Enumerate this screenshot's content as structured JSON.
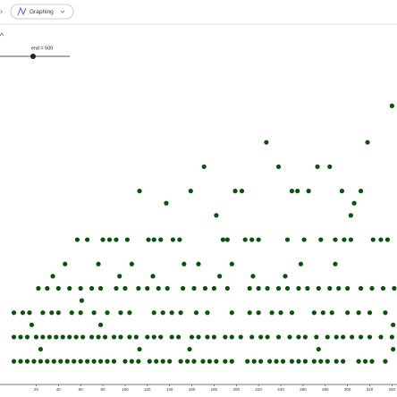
{
  "toolbar": {
    "app": "Graphing"
  },
  "slider": {
    "label": "end = 500"
  },
  "chart_data": {
    "type": "scatter",
    "color": "#0b520b",
    "xlim": [
      -12.5,
      344.5
    ],
    "ylim": [
      -0.9,
      30.7
    ],
    "xticks": [
      20,
      40,
      60,
      80,
      100,
      120,
      140,
      160,
      180,
      200,
      220,
      240,
      260,
      280,
      300,
      320,
      340
    ],
    "x": [
      0,
      6,
      12,
      18,
      24,
      30,
      36,
      42,
      48,
      54,
      60,
      66,
      72,
      78,
      84,
      90,
      100,
      106,
      112,
      122,
      128,
      134,
      140,
      150,
      156,
      162,
      170,
      176,
      182,
      190,
      196,
      210,
      216,
      222,
      230,
      236,
      242,
      250,
      256,
      262,
      270,
      276,
      282,
      290,
      296,
      310,
      316,
      322,
      334,
      24,
      113,
      158,
      274,
      341,
      0,
      6,
      12,
      20,
      26,
      32,
      38,
      44,
      50,
      56,
      62,
      70,
      76,
      82,
      90,
      96,
      104,
      110,
      120,
      126,
      132,
      142,
      148,
      160,
      166,
      174,
      180,
      190,
      196,
      204,
      214,
      222,
      228,
      238,
      248,
      256,
      262,
      272,
      282,
      290,
      296,
      304,
      312,
      320,
      330,
      340,
      16,
      78,
      341,
      0,
      8,
      14,
      26,
      34,
      40,
      52,
      60,
      72,
      84,
      96,
      104,
      126,
      134,
      142,
      150,
      164,
      174,
      196,
      212,
      220,
      232,
      240,
      250,
      270,
      278,
      286,
      300,
      310,
      320,
      334,
      61,
      22,
      30,
      40,
      50,
      60,
      70,
      78,
      92,
      100,
      112,
      120,
      130,
      138,
      152,
      162,
      172,
      180,
      192,
      212,
      220,
      228,
      238,
      246,
      256,
      264,
      274,
      284,
      292,
      300,
      312,
      322,
      332,
      342,
      35,
      95,
      125,
      185,
      215,
      244,
      46,
      76,
      106,
      153,
      166,
      196,
      258,
      289,
      57,
      66,
      80,
      86,
      92,
      102,
      121,
      126,
      132,
      143,
      149,
      188,
      192,
      208,
      214,
      220,
      246,
      261,
      276,
      289,
      297,
      303,
      323,
      330,
      336,
      182,
      303,
      137,
      306,
      113,
      159,
      199,
      205,
      250,
      255,
      265,
      295,
      312,
      171,
      238,
      273,
      284,
      227,
      318,
      340
    ],
    "values": [
      1,
      1,
      1,
      1,
      1,
      1,
      1,
      1,
      1,
      1,
      1,
      1,
      1,
      1,
      1,
      1,
      1,
      1,
      1,
      1,
      1,
      1,
      1,
      1,
      1,
      1,
      1,
      1,
      1,
      1,
      1,
      1,
      1,
      1,
      1,
      1,
      1,
      1,
      1,
      1,
      1,
      1,
      1,
      1,
      1,
      1,
      1,
      1,
      1,
      2,
      2,
      2,
      2,
      2,
      3,
      3,
      3,
      3,
      3,
      3,
      3,
      3,
      3,
      3,
      3,
      3,
      3,
      3,
      3,
      3,
      3,
      3,
      3,
      3,
      3,
      3,
      3,
      3,
      3,
      3,
      3,
      3,
      3,
      3,
      3,
      3,
      3,
      3,
      3,
      3,
      3,
      3,
      3,
      3,
      3,
      3,
      3,
      3,
      3,
      3,
      4,
      4,
      4,
      5,
      5,
      5,
      5,
      5,
      5,
      5,
      5,
      5,
      5,
      5,
      5,
      5,
      5,
      5,
      5,
      5,
      5,
      5,
      5,
      5,
      5,
      5,
      5,
      5,
      5,
      5,
      5,
      5,
      5,
      5,
      6,
      7,
      7,
      7,
      7,
      7,
      7,
      7,
      7,
      7,
      7,
      7,
      7,
      7,
      7,
      7,
      7,
      7,
      7,
      7,
      7,
      7,
      7,
      7,
      7,
      7,
      7,
      7,
      7,
      7,
      7,
      7,
      7,
      7,
      8,
      8,
      8,
      8,
      8,
      8,
      9,
      9,
      9,
      9,
      9,
      9,
      9,
      9,
      11,
      11,
      11,
      11,
      11,
      11,
      11,
      11,
      11,
      11,
      11,
      11,
      11,
      11,
      11,
      11,
      11,
      11,
      11,
      11,
      11,
      11,
      11,
      11,
      11,
      13,
      13,
      14,
      14,
      15,
      15,
      15,
      15,
      15,
      15,
      15,
      15,
      15,
      17,
      17,
      17,
      17,
      19,
      19,
      22
    ]
  }
}
